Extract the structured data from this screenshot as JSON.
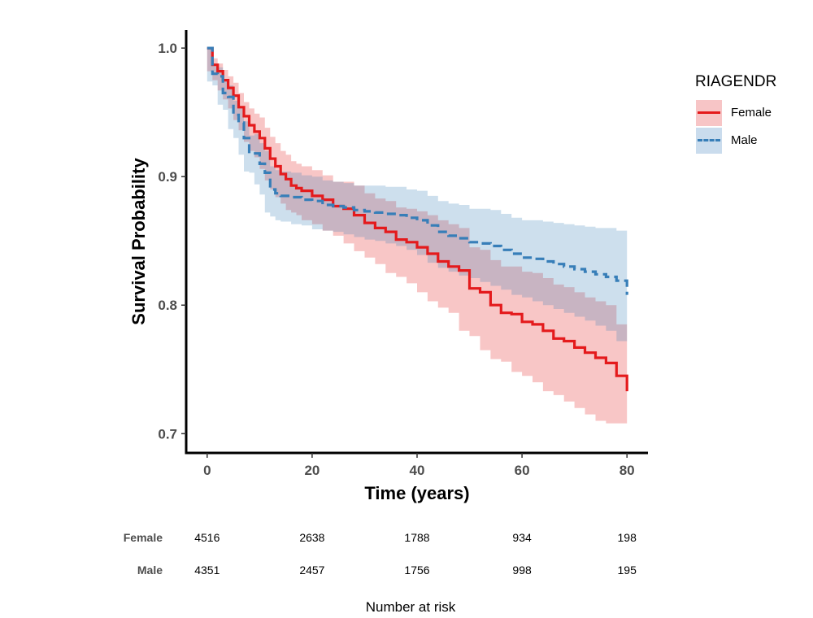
{
  "chart_data": {
    "type": "line",
    "subtype": "kaplan-meier survival curve with confidence bands",
    "xlabel": "Time (years)",
    "ylabel": "Survival Probability",
    "xlim": [
      -4,
      84
    ],
    "ylim": [
      0.685,
      1.014
    ],
    "x_ticks": [
      0,
      20,
      40,
      60,
      80
    ],
    "x_tick_labels": [
      "0",
      "20",
      "40",
      "60",
      "80"
    ],
    "y_ticks": [
      0.7,
      0.8,
      0.9,
      1.0
    ],
    "y_tick_labels": [
      "0.7",
      "0.8",
      "0.9",
      "1.0"
    ],
    "grid": false,
    "legend": {
      "title": "RIAGENDR",
      "position": "right",
      "entries": [
        "Female",
        "Male"
      ]
    },
    "series": [
      {
        "name": "Female",
        "color": "#e41a1c",
        "line_style": "solid",
        "x": [
          0,
          1,
          2,
          3,
          4,
          5,
          6,
          7,
          8,
          9,
          10,
          11,
          12,
          13,
          14,
          15,
          16,
          17,
          18,
          20,
          22,
          24,
          26,
          28,
          30,
          32,
          34,
          36,
          38,
          40,
          42,
          44,
          46,
          48,
          50,
          52,
          54,
          56,
          58,
          60,
          62,
          64,
          66,
          68,
          70,
          72,
          74,
          76,
          78,
          80
        ],
        "y": [
          1.0,
          0.987,
          0.982,
          0.975,
          0.969,
          0.963,
          0.954,
          0.947,
          0.94,
          0.935,
          0.93,
          0.922,
          0.914,
          0.908,
          0.902,
          0.898,
          0.893,
          0.891,
          0.889,
          0.885,
          0.882,
          0.877,
          0.875,
          0.87,
          0.864,
          0.86,
          0.857,
          0.851,
          0.849,
          0.845,
          0.84,
          0.834,
          0.83,
          0.827,
          0.813,
          0.81,
          0.8,
          0.794,
          0.793,
          0.787,
          0.785,
          0.78,
          0.774,
          0.772,
          0.767,
          0.763,
          0.759,
          0.755,
          0.745,
          0.733
        ],
        "ci_lower": [
          1.0,
          0.982,
          0.975,
          0.967,
          0.96,
          0.953,
          0.944,
          0.936,
          0.927,
          0.92,
          0.915,
          0.906,
          0.897,
          0.89,
          0.884,
          0.879,
          0.874,
          0.872,
          0.87,
          0.866,
          0.863,
          0.858,
          0.854,
          0.848,
          0.842,
          0.837,
          0.832,
          0.825,
          0.822,
          0.817,
          0.81,
          0.803,
          0.798,
          0.794,
          0.78,
          0.776,
          0.765,
          0.758,
          0.756,
          0.748,
          0.745,
          0.74,
          0.733,
          0.73,
          0.725,
          0.72,
          0.715,
          0.71,
          0.708,
          0.708
        ],
        "ci_upper": [
          1.0,
          0.992,
          0.988,
          0.983,
          0.978,
          0.973,
          0.965,
          0.958,
          0.953,
          0.949,
          0.946,
          0.938,
          0.931,
          0.926,
          0.92,
          0.917,
          0.912,
          0.91,
          0.908,
          0.905,
          0.901,
          0.896,
          0.896,
          0.893,
          0.887,
          0.883,
          0.881,
          0.876,
          0.875,
          0.873,
          0.87,
          0.866,
          0.863,
          0.86,
          0.845,
          0.843,
          0.835,
          0.83,
          0.83,
          0.826,
          0.825,
          0.821,
          0.816,
          0.814,
          0.81,
          0.806,
          0.803,
          0.8,
          0.785,
          0.78
        ]
      },
      {
        "name": "Male",
        "color": "#377eb8",
        "line_style": "dashed",
        "x": [
          0,
          1,
          2,
          3,
          4,
          5,
          6,
          7,
          8,
          9,
          10,
          11,
          12,
          13,
          14,
          16,
          18,
          20,
          22,
          24,
          26,
          28,
          30,
          32,
          34,
          36,
          38,
          40,
          42,
          44,
          46,
          48,
          50,
          52,
          54,
          56,
          58,
          60,
          62,
          64,
          66,
          68,
          70,
          72,
          74,
          76,
          78,
          80
        ],
        "y": [
          1.0,
          0.98,
          0.978,
          0.965,
          0.962,
          0.948,
          0.942,
          0.93,
          0.918,
          0.918,
          0.91,
          0.903,
          0.89,
          0.887,
          0.885,
          0.884,
          0.882,
          0.881,
          0.878,
          0.877,
          0.876,
          0.874,
          0.873,
          0.872,
          0.871,
          0.87,
          0.868,
          0.866,
          0.862,
          0.857,
          0.854,
          0.852,
          0.849,
          0.848,
          0.846,
          0.843,
          0.84,
          0.837,
          0.836,
          0.834,
          0.832,
          0.83,
          0.828,
          0.826,
          0.824,
          0.822,
          0.819,
          0.808
        ],
        "ci_lower": [
          1.0,
          0.974,
          0.971,
          0.956,
          0.952,
          0.937,
          0.93,
          0.917,
          0.904,
          0.903,
          0.894,
          0.886,
          0.872,
          0.869,
          0.866,
          0.865,
          0.863,
          0.862,
          0.859,
          0.858,
          0.857,
          0.855,
          0.853,
          0.851,
          0.85,
          0.848,
          0.846,
          0.843,
          0.839,
          0.833,
          0.829,
          0.826,
          0.823,
          0.821,
          0.818,
          0.815,
          0.812,
          0.808,
          0.806,
          0.803,
          0.8,
          0.797,
          0.794,
          0.791,
          0.788,
          0.784,
          0.78,
          0.772
        ],
        "ci_upper": [
          1.0,
          0.986,
          0.985,
          0.974,
          0.971,
          0.959,
          0.954,
          0.943,
          0.932,
          0.933,
          0.926,
          0.92,
          0.908,
          0.905,
          0.904,
          0.903,
          0.901,
          0.9,
          0.897,
          0.896,
          0.895,
          0.893,
          0.893,
          0.893,
          0.892,
          0.892,
          0.89,
          0.889,
          0.885,
          0.881,
          0.879,
          0.878,
          0.875,
          0.875,
          0.874,
          0.871,
          0.868,
          0.866,
          0.866,
          0.865,
          0.864,
          0.863,
          0.862,
          0.861,
          0.86,
          0.86,
          0.858,
          0.84
        ]
      }
    ]
  },
  "legend": {
    "title": "RIAGENDR",
    "items": [
      {
        "label": "Female",
        "color": "#e41a1c",
        "fill": "#f7c5c6",
        "dashed": false
      },
      {
        "label": "Male",
        "color": "#377eb8",
        "fill": "#cadced",
        "dashed": true
      }
    ]
  },
  "risk_table": {
    "title": "Number at risk",
    "time_points": [
      0,
      20,
      40,
      60,
      80
    ],
    "groups": [
      {
        "name": "Female",
        "values": [
          "4516",
          "2638",
          "1788",
          "934",
          "198"
        ]
      },
      {
        "name": "Male",
        "values": [
          "4351",
          "2457",
          "1756",
          "998",
          "195"
        ]
      }
    ]
  }
}
